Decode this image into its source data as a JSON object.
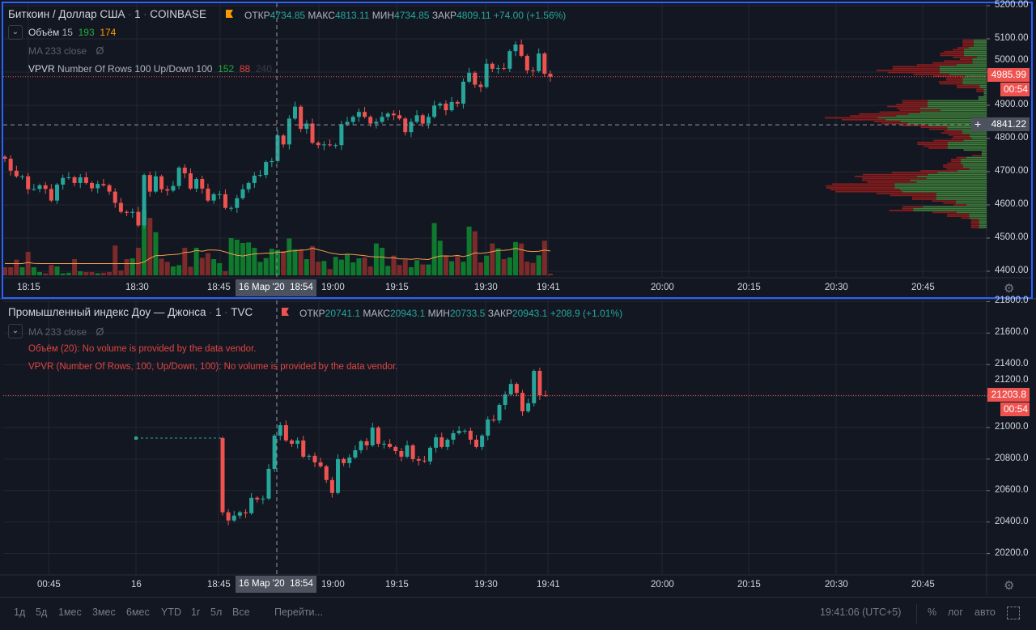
{
  "top_pane": {
    "symbol": "Биткоин / Доллар США",
    "interval": "1",
    "exchange": "COINBASE",
    "ohlc": {
      "o_label": "ОТКР",
      "o": "4734.85",
      "h_label": "МАКС",
      "h": "4813.11",
      "l_label": "МИН",
      "l": "4734.85",
      "c_label": "ЗАКР",
      "c": "4809.11",
      "change": "+74.00 (+1.56%)"
    },
    "volume_indicator": {
      "name": "Объём",
      "length": "15",
      "value": "193",
      "ma_value": "174"
    },
    "ma_indicator": "MA 233 close",
    "vpvr_indicator": {
      "name": "VPVR",
      "params": "Number Of Rows 100 Up/Down 100",
      "up": "152",
      "down": "88",
      "total": "240"
    },
    "price_ticks": [
      "5200.00",
      "5100.00",
      "5000.00",
      "4900.00",
      "4800.00",
      "4700.00",
      "4600.00",
      "4500.00",
      "4400.00"
    ],
    "last_price": "4985.99",
    "countdown": "00:54",
    "crosshair_price": "4841.22",
    "time_ticks": [
      "18:15",
      "18:30",
      "18:45",
      "19:00",
      "19:15",
      "19:30",
      "19:41",
      "20:00",
      "20:15",
      "20:30",
      "20:45"
    ],
    "crosshair_date": "16 Мар '20",
    "crosshair_time": "18:54"
  },
  "bottom_pane": {
    "symbol": "Промышленный индекс Доу — Джонса",
    "interval": "1",
    "exchange": "TVC",
    "ohlc": {
      "o_label": "ОТКР",
      "o": "20741.1",
      "h_label": "МАКС",
      "h": "20943.1",
      "l_label": "МИН",
      "l": "20733.5",
      "c_label": "ЗАКР",
      "c": "20943.1",
      "change": "+208.9 (+1.01%)"
    },
    "ma_indicator": "MA 233 close",
    "volume_error": "Объём (20): No volume is provided by the data vendor.",
    "vpvr_error": "VPVR (Number Of Rows, 100, Up/Down, 100): No volume is provided by the data vendor.",
    "price_ticks": [
      "21800.0",
      "21600.0",
      "21400.0",
      "21200.0",
      "21000.0",
      "20800.0",
      "20600.0",
      "20400.0",
      "20200.0"
    ],
    "last_price": "21203.8",
    "countdown": "00:54",
    "time_ticks": [
      "00:45",
      "16",
      "18:45",
      "19:00",
      "19:15",
      "19:30",
      "19:41",
      "20:00",
      "20:15",
      "20:30",
      "20:45"
    ],
    "crosshair_date": "16 Мар '20",
    "crosshair_time": "18:54"
  },
  "toolbar": {
    "ranges": [
      "1д",
      "5д",
      "1мес",
      "3мес",
      "6мес",
      "YTD",
      "1г",
      "5л",
      "Все"
    ],
    "goto": "Перейти...",
    "clock": "19:41:06 (UTC+5)",
    "percent": "%",
    "log": "лог",
    "auto": "авто"
  },
  "colors": {
    "background": "#131722",
    "up_candle": "#26a69a",
    "down_candle": "#ef5350",
    "up_volume": "#0f7a2d",
    "down_volume": "#7c2a2a",
    "vpvr_up": "#3f7d3a",
    "vpvr_down": "#8c1c1c",
    "ma_line": "#f0a04b",
    "selected_pane": "#2962ff"
  },
  "chart_data": [
    {
      "type": "candlestick",
      "series_of": "top_pane",
      "prev_close": 4745,
      "closes": [
        4739,
        4703,
        4686,
        4686,
        4647,
        4648,
        4659,
        4648,
        4613,
        4661,
        4681,
        4683,
        4666,
        4683,
        4666,
        4650,
        4663,
        4659,
        4640,
        4606,
        4579,
        4576,
        4579,
        4538,
        4690,
        4640,
        4686,
        4647,
        4643,
        4657,
        4712,
        4695,
        4649,
        4678,
        4649,
        4613,
        4632,
        4632,
        4591,
        4591,
        4620,
        4647,
        4666,
        4688,
        4690,
        4729,
        4732,
        4809,
        4782,
        4860,
        4896,
        4829,
        4845,
        4787,
        4780,
        4782,
        4780,
        4780,
        4843,
        4850,
        4865,
        4880,
        4865,
        4845,
        4850,
        4865,
        4875,
        4870,
        4860,
        4819,
        4850,
        4870,
        4845,
        4865,
        4899,
        4905,
        4885,
        4910,
        4905,
        4971,
        4998,
        4962,
        4955,
        5025,
        5010,
        5012,
        5010,
        5063,
        5083,
        5049,
        5005,
        5003,
        5056,
        4995,
        4986
      ],
      "volumes": [
        62,
        62,
        120,
        62,
        180,
        62,
        25,
        15,
        80,
        68,
        15,
        20,
        124,
        31,
        25,
        25,
        16,
        20,
        25,
        228,
        37,
        124,
        130,
        211,
        500,
        440,
        330,
        128,
        103,
        68,
        78,
        211,
        66,
        211,
        134,
        170,
        124,
        93,
        31,
        285,
        273,
        248,
        252,
        211,
        103,
        132,
        203,
        195,
        186,
        282,
        199,
        199,
        124,
        224,
        104,
        110,
        48,
        141,
        120,
        161,
        99,
        130,
        137,
        68,
        244,
        211,
        72,
        151,
        79,
        120,
        62,
        116,
        83,
        83,
        400,
        265,
        145,
        108,
        149,
        104,
        373,
        337,
        99,
        151,
        244,
        207,
        124,
        137,
        255,
        244,
        104,
        95,
        153,
        265,
        12
      ],
      "ylim": [
        4400,
        5200
      ]
    },
    {
      "type": "candlestick",
      "series_of": "bottom_pane",
      "prev_close": 20933,
      "closes": [
        20462,
        20410,
        20441,
        20462,
        20456,
        20554,
        20544,
        20549,
        20738,
        20949,
        21015,
        20918,
        20897,
        20918,
        20815,
        20821,
        20779,
        20754,
        20667,
        20585,
        20800,
        20774,
        20810,
        20856,
        20913,
        20887,
        21000,
        20897,
        20897,
        20877,
        20851,
        20815,
        20887,
        20800,
        20790,
        20785,
        20872,
        20938,
        20877,
        20923,
        20964,
        20980,
        20980,
        20923,
        20877,
        20949,
        21051,
        21045,
        21144,
        21210,
        21277,
        21220,
        21103,
        21154,
        21360,
        21205,
        21204
      ],
      "ylim": [
        20100,
        21850
      ]
    }
  ]
}
